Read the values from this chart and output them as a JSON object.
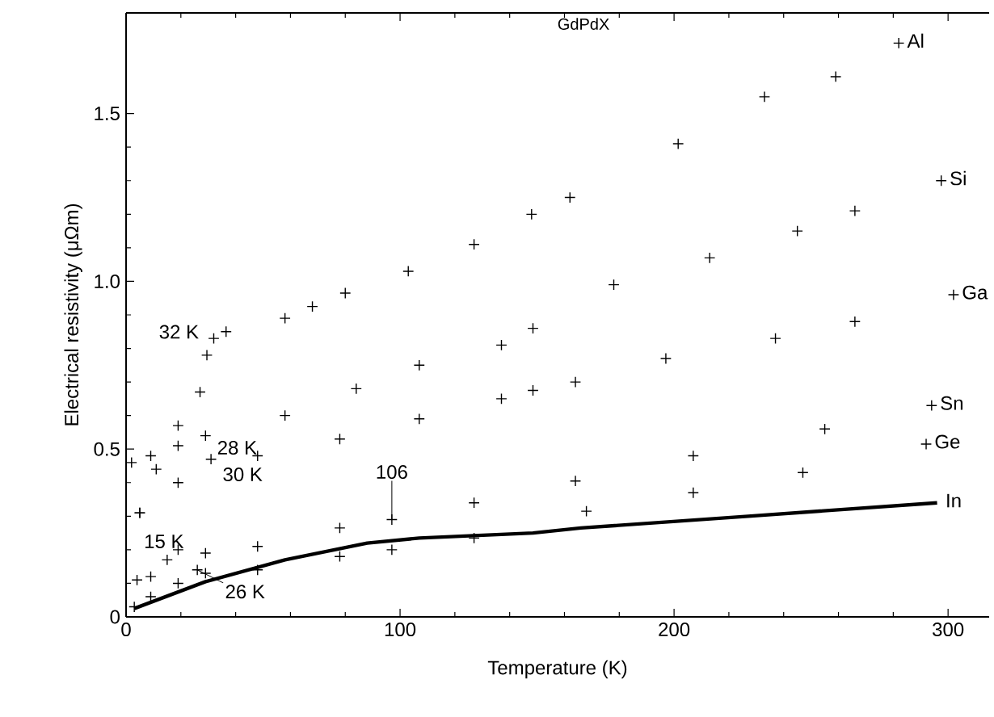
{
  "chart_data": {
    "type": "scatter",
    "title": "GdPdX",
    "xlabel": "Temperature (K)",
    "ylabel": "Electrical resistivity (μΩm)",
    "xlim": [
      0,
      315
    ],
    "ylim": [
      0,
      1.8
    ],
    "xticks": [
      0,
      100,
      200,
      300
    ],
    "yticks": [
      0,
      {
        "value": 0.5,
        "label": "0.5"
      },
      {
        "value": 1,
        "label": "1.0"
      },
      {
        "value": 1.5,
        "label": "1.5"
      }
    ],
    "marker": "cross",
    "grid": false,
    "series": [
      {
        "name": "Al",
        "color": "#000000",
        "x": [
          2,
          9,
          19,
          27,
          29.5,
          32,
          36.5,
          58,
          68,
          80,
          103,
          127,
          148,
          162,
          201.5,
          233,
          259,
          282
        ],
        "values": [
          0.46,
          0.48,
          0.57,
          0.67,
          0.78,
          0.83,
          0.85,
          0.89,
          0.925,
          0.965,
          1.03,
          1.11,
          1.2,
          1.25,
          1.41,
          1.55,
          1.61,
          1.71
        ]
      },
      {
        "name": "Si",
        "color": "#000000",
        "x": [
          5,
          11,
          19,
          29,
          58,
          84,
          107,
          137,
          148.5,
          178,
          213,
          245,
          266,
          297.5
        ],
        "values": [
          0.31,
          0.44,
          0.51,
          0.54,
          0.6,
          0.68,
          0.75,
          0.81,
          0.86,
          0.99,
          1.07,
          1.15,
          1.21,
          1.3
        ]
      },
      {
        "name": "Ga",
        "color": "#000000",
        "x": [
          5,
          19,
          31,
          48,
          78,
          107,
          137,
          148.5,
          164,
          197,
          237,
          266,
          302
        ],
        "values": [
          0.31,
          0.4,
          0.47,
          0.48,
          0.53,
          0.59,
          0.65,
          0.675,
          0.7,
          0.77,
          0.83,
          0.88,
          0.96
        ]
      },
      {
        "name": "Sn",
        "color": "#000000",
        "x": [
          4,
          9,
          15,
          19,
          29,
          48,
          78,
          97,
          127,
          164,
          207,
          255,
          294
        ],
        "values": [
          0.11,
          0.12,
          0.17,
          0.2,
          0.19,
          0.21,
          0.265,
          0.29,
          0.34,
          0.405,
          0.48,
          0.56,
          0.63
        ]
      },
      {
        "name": "Ge",
        "color": "#000000",
        "x": [
          3,
          9,
          19,
          26,
          29,
          48,
          78,
          97,
          127,
          168,
          207,
          247,
          292
        ],
        "values": [
          0.03,
          0.06,
          0.1,
          0.14,
          0.13,
          0.14,
          0.18,
          0.2,
          0.235,
          0.315,
          0.37,
          0.43,
          0.515
        ]
      },
      {
        "name": "In",
        "type": "line",
        "marker": "none",
        "color": "#000000",
        "x": [
          3,
          29,
          58,
          88,
          107,
          148.5,
          166,
          227,
          296
        ],
        "values": [
          0.025,
          0.105,
          0.17,
          0.22,
          0.235,
          0.25,
          0.265,
          0.3,
          0.34
        ]
      }
    ],
    "annotations": [
      {
        "text": "32 K",
        "x": 32,
        "y": 0.83
      },
      {
        "text": "28 K",
        "x": 29,
        "y": 0.54
      },
      {
        "text": "30 K",
        "x": 31,
        "y": 0.47
      },
      {
        "text": "15 K",
        "x": 15,
        "y": 0.17
      },
      {
        "text": "26 K",
        "x": 26,
        "y": 0.14
      },
      {
        "text": "106",
        "x": 97,
        "y": 0.29
      }
    ]
  }
}
